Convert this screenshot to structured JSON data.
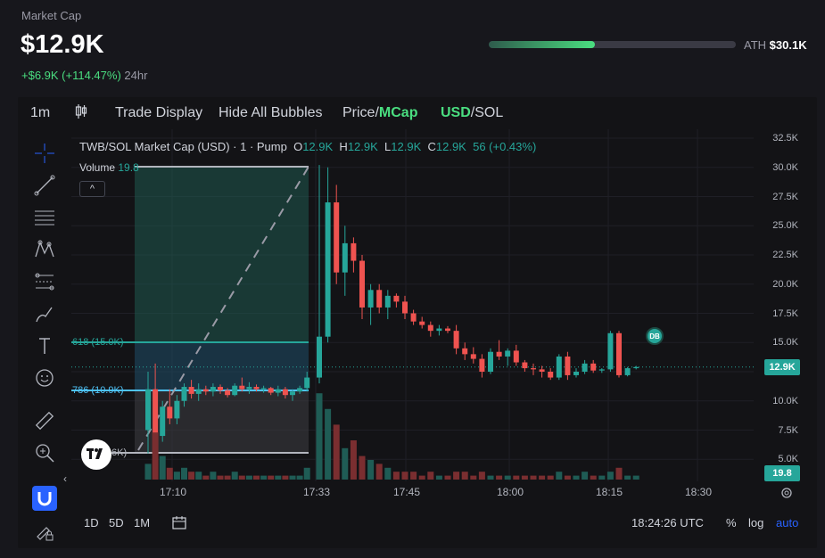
{
  "header": {
    "label": "Market Cap",
    "value": "$12.9K",
    "change_pos": "+$6.9K (+114.47%)",
    "change_period": "24hr",
    "ath_label": "ATH",
    "ath_value": "$30.1K",
    "ath_progress": 0.43
  },
  "toolbar": {
    "interval": "1m",
    "trade_display": "Trade Display",
    "hide_bubbles": "Hide All Bubbles",
    "price_label": "Price/",
    "mcap_label": "MCap",
    "usd_label": "USD",
    "sol_label": "/SOL"
  },
  "legend": {
    "title": "TWB/SOL Market Cap (USD) · 1 · Pump",
    "o_key": "O",
    "o_val": "12.9K",
    "h_key": "H",
    "h_val": "12.9K",
    "l_key": "L",
    "l_val": "12.9K",
    "c_key": "C",
    "c_val": "12.9K",
    "change": "56 (+0.43%)",
    "volume_label": "Volume",
    "volume_value": "19.8",
    "collapse_icon": "^"
  },
  "yaxis": [
    "32.5K",
    "30.0K",
    "27.5K",
    "25.0K",
    "22.5K",
    "20.0K",
    "17.5K",
    "15.0K",
    "12.5K",
    "10.0K",
    "7.5K",
    "5.0K"
  ],
  "xaxis": [
    "17:10",
    "17:33",
    "17:45",
    "18:00",
    "18:15",
    "18:30"
  ],
  "price_tag": "12.9K",
  "volume_tag": "19.8",
  "fib": {
    "l618": "618 (15.0K)",
    "l786": "786 (10.9K)",
    "l1": "6K)"
  },
  "badge": "DB",
  "bottom": {
    "ranges": [
      "1D",
      "5D",
      "1M"
    ],
    "time": "18:24:26 UTC",
    "percent": "%",
    "log": "log",
    "auto": "auto"
  },
  "colors": {
    "up": "#26a69a",
    "down": "#ef5350",
    "accent": "#4ade80",
    "blue": "#2962ff"
  },
  "icons": [
    "crosshair-icon",
    "trend-line-icon",
    "horizontal-lines-icon",
    "pattern-icon",
    "fib-icon",
    "brush-icon",
    "text-icon",
    "emoji-icon",
    "ruler-icon",
    "zoom-icon",
    "magnet-icon",
    "lock-icon"
  ],
  "chart_data": {
    "type": "candlestick",
    "title": "TWB/SOL Market Cap (USD) · 1 · Pump",
    "ylim": [
      3750,
      33750
    ],
    "x_ticks": [
      "17:10",
      "17:33",
      "17:45",
      "18:00",
      "18:15",
      "18:30"
    ],
    "candles": [
      {
        "o": 7.5,
        "h": 12.5,
        "l": 5.5,
        "c": 11.0
      },
      {
        "o": 11.0,
        "h": 13.2,
        "l": 6.0,
        "c": 7.0
      },
      {
        "o": 7.0,
        "h": 10.0,
        "l": 6.5,
        "c": 9.5
      },
      {
        "o": 9.5,
        "h": 11.0,
        "l": 8.0,
        "c": 8.5
      },
      {
        "o": 8.5,
        "h": 10.5,
        "l": 8.0,
        "c": 10.0
      },
      {
        "o": 10.0,
        "h": 11.5,
        "l": 9.5,
        "c": 11.2
      },
      {
        "o": 11.2,
        "h": 11.8,
        "l": 10.2,
        "c": 10.6
      },
      {
        "o": 10.6,
        "h": 11.5,
        "l": 10.0,
        "c": 11.0
      },
      {
        "o": 11.0,
        "h": 11.3,
        "l": 10.5,
        "c": 10.8
      },
      {
        "o": 10.8,
        "h": 11.5,
        "l": 10.4,
        "c": 11.2
      },
      {
        "o": 11.2,
        "h": 11.4,
        "l": 10.6,
        "c": 10.9
      },
      {
        "o": 10.9,
        "h": 11.1,
        "l": 10.3,
        "c": 10.5
      },
      {
        "o": 10.5,
        "h": 11.5,
        "l": 10.4,
        "c": 11.3
      },
      {
        "o": 11.3,
        "h": 12.0,
        "l": 10.8,
        "c": 11.0
      },
      {
        "o": 11.0,
        "h": 11.6,
        "l": 10.6,
        "c": 11.2
      },
      {
        "o": 11.2,
        "h": 11.4,
        "l": 10.8,
        "c": 11.0
      },
      {
        "o": 11.0,
        "h": 11.3,
        "l": 10.7,
        "c": 11.1
      },
      {
        "o": 11.1,
        "h": 11.2,
        "l": 10.5,
        "c": 10.7
      },
      {
        "o": 10.7,
        "h": 11.3,
        "l": 10.4,
        "c": 11.0
      },
      {
        "o": 11.0,
        "h": 11.2,
        "l": 10.2,
        "c": 10.5
      },
      {
        "o": 10.5,
        "h": 11.0,
        "l": 10.0,
        "c": 10.8
      },
      {
        "o": 10.8,
        "h": 11.3,
        "l": 10.6,
        "c": 11.1
      },
      {
        "o": 11.1,
        "h": 12.5,
        "l": 10.8,
        "c": 12.0
      },
      {
        "o": 12.0,
        "h": 30.2,
        "l": 11.5,
        "c": 15.5
      },
      {
        "o": 15.5,
        "h": 30.0,
        "l": 15.0,
        "c": 27.0
      },
      {
        "o": 27.0,
        "h": 28.5,
        "l": 20.0,
        "c": 21.0
      },
      {
        "o": 21.0,
        "h": 25.0,
        "l": 19.0,
        "c": 23.5
      },
      {
        "o": 23.5,
        "h": 24.0,
        "l": 21.0,
        "c": 22.0
      },
      {
        "o": 22.0,
        "h": 22.5,
        "l": 17.0,
        "c": 18.0
      },
      {
        "o": 18.0,
        "h": 20.0,
        "l": 16.5,
        "c": 19.5
      },
      {
        "o": 19.5,
        "h": 20.0,
        "l": 17.5,
        "c": 18.0
      },
      {
        "o": 18.0,
        "h": 19.5,
        "l": 17.0,
        "c": 19.0
      },
      {
        "o": 19.0,
        "h": 19.2,
        "l": 18.0,
        "c": 18.5
      },
      {
        "o": 18.5,
        "h": 19.0,
        "l": 17.0,
        "c": 17.5
      },
      {
        "o": 17.5,
        "h": 17.8,
        "l": 16.5,
        "c": 16.8
      },
      {
        "o": 16.8,
        "h": 17.2,
        "l": 16.2,
        "c": 16.5
      },
      {
        "o": 16.5,
        "h": 16.8,
        "l": 15.5,
        "c": 16.0
      },
      {
        "o": 16.0,
        "h": 16.5,
        "l": 15.6,
        "c": 16.2
      },
      {
        "o": 16.2,
        "h": 16.4,
        "l": 15.8,
        "c": 16.0
      },
      {
        "o": 16.0,
        "h": 16.5,
        "l": 14.0,
        "c": 14.5
      },
      {
        "o": 14.5,
        "h": 15.0,
        "l": 13.5,
        "c": 14.0
      },
      {
        "o": 14.0,
        "h": 14.6,
        "l": 13.2,
        "c": 13.6
      },
      {
        "o": 13.6,
        "h": 14.0,
        "l": 12.0,
        "c": 12.5
      },
      {
        "o": 12.5,
        "h": 14.5,
        "l": 12.3,
        "c": 14.2
      },
      {
        "o": 14.2,
        "h": 15.2,
        "l": 13.5,
        "c": 13.8
      },
      {
        "o": 13.8,
        "h": 14.5,
        "l": 13.0,
        "c": 14.3
      },
      {
        "o": 14.3,
        "h": 14.8,
        "l": 13.0,
        "c": 13.3
      },
      {
        "o": 13.3,
        "h": 13.5,
        "l": 12.5,
        "c": 12.8
      },
      {
        "o": 12.8,
        "h": 13.2,
        "l": 12.2,
        "c": 12.7
      },
      {
        "o": 12.7,
        "h": 13.0,
        "l": 12.0,
        "c": 12.5
      },
      {
        "o": 12.5,
        "h": 12.8,
        "l": 11.8,
        "c": 12.0
      },
      {
        "o": 12.0,
        "h": 14.0,
        "l": 11.8,
        "c": 13.8
      },
      {
        "o": 13.8,
        "h": 14.2,
        "l": 11.8,
        "c": 12.2
      },
      {
        "o": 12.2,
        "h": 12.8,
        "l": 12.0,
        "c": 12.5
      },
      {
        "o": 12.5,
        "h": 13.5,
        "l": 12.3,
        "c": 13.2
      },
      {
        "o": 13.2,
        "h": 13.5,
        "l": 12.4,
        "c": 12.6
      },
      {
        "o": 12.6,
        "h": 12.8,
        "l": 12.4,
        "c": 12.7
      },
      {
        "o": 12.7,
        "h": 16.0,
        "l": 12.5,
        "c": 15.8
      },
      {
        "o": 15.8,
        "h": 16.0,
        "l": 12.0,
        "c": 12.2
      },
      {
        "o": 12.2,
        "h": 12.9,
        "l": 12.1,
        "c": 12.8
      },
      {
        "o": 12.8,
        "h": 13.0,
        "l": 12.7,
        "c": 12.9
      }
    ],
    "volume": [
      4,
      12,
      6,
      3,
      2,
      3,
      2,
      2,
      1,
      2,
      1,
      1,
      2,
      1,
      1,
      1,
      1,
      1,
      1,
      1,
      1,
      1,
      3,
      22,
      18,
      14,
      8,
      10,
      6,
      5,
      4,
      3,
      2,
      2,
      2,
      1,
      2,
      1,
      1,
      2,
      2,
      1,
      2,
      1,
      1,
      1,
      1,
      1,
      1,
      1,
      1,
      2,
      1,
      1,
      2,
      1,
      1,
      2,
      3,
      1,
      1
    ],
    "volume_max": 25
  }
}
